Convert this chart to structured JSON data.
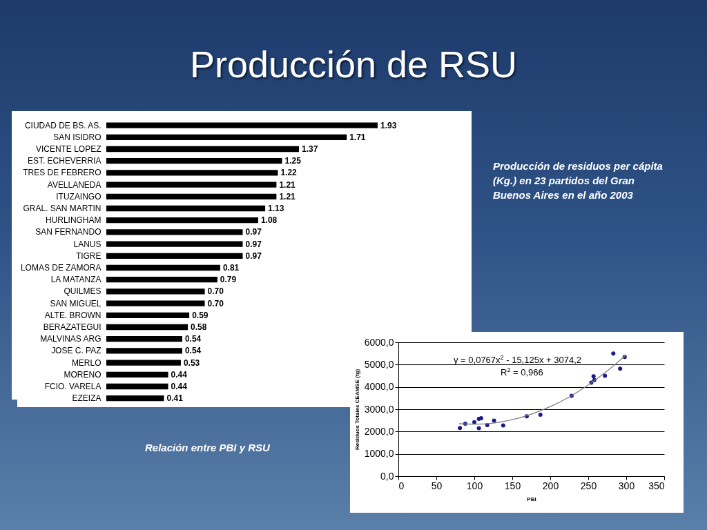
{
  "chart_data": [
    {
      "type": "bar",
      "orientation": "horizontal",
      "title": "Producción de RSU",
      "categories": [
        "CIUDAD DE BS. AS.",
        "SAN ISIDRO",
        "VICENTE LOPEZ",
        "EST. ECHEVERRIA",
        "TRES DE FEBRERO",
        "AVELLANEDA",
        "ITUZAINGO",
        "GRAL. SAN MARTIN",
        "HURLINGHAM",
        "SAN FERNANDO",
        "LANUS",
        "TIGRE",
        "LOMAS DE ZAMORA",
        "LA MATANZA",
        "QUILMES",
        "SAN MIGUEL",
        "ALTE. BROWN",
        "BERAZATEGUI",
        "MALVINAS ARG",
        "JOSE C. PAZ",
        "MERLO",
        "MORENO",
        "FCIO. VARELA",
        "EZEIZA"
      ],
      "values": [
        1.93,
        1.71,
        1.37,
        1.25,
        1.22,
        1.21,
        1.21,
        1.13,
        1.08,
        0.97,
        0.97,
        0.97,
        0.81,
        0.79,
        0.7,
        0.7,
        0.59,
        0.58,
        0.54,
        0.54,
        0.53,
        0.44,
        0.44,
        0.41
      ],
      "value_labels": [
        "1.93",
        "1.71",
        "1.37",
        "1.25",
        "1.22",
        "1.21",
        "1.21",
        "1.13",
        "1.08",
        "0.97",
        "0.97",
        "0.97",
        "0.81",
        "0.79",
        "0.70",
        "0.70",
        "0.59",
        "0.58",
        "0.54",
        "0.54",
        "0.53",
        "0.44",
        "0.44",
        "0.41"
      ],
      "color": "#000000",
      "annotations": [
        "Producción de residuos per cápita (Kg.) en 23 partidos del Gran Buenos Aires en el año 2003"
      ]
    },
    {
      "type": "scatter",
      "xlabel": "PBI",
      "ylabel": "Residuos Totales CEAMSE (tg)",
      "xlim": [
        0,
        350
      ],
      "xticks": [
        0,
        50,
        100,
        150,
        200,
        250,
        300,
        350
      ],
      "ylim": [
        0,
        6000
      ],
      "yticks": [
        {
          "value": 0,
          "label": "0,0"
        },
        {
          "value": 1000,
          "label": "1000,0"
        },
        {
          "value": 2000,
          "label": "2000,0"
        },
        {
          "value": 3000,
          "label": "3000,0"
        },
        {
          "value": 4000,
          "label": "4000,0"
        },
        {
          "value": 5000,
          "label": "5000,0"
        },
        {
          "value": 6000,
          "label": "6000,0"
        }
      ],
      "grid": "y",
      "series": [
        {
          "type": "scatter",
          "marker": "circle",
          "color": "#1a1a8c",
          "x": [
            81,
            88,
            100,
            106,
            106,
            109,
            117,
            126,
            138,
            169,
            187,
            228,
            254,
            257,
            258,
            272,
            283,
            292,
            298
          ],
          "values": [
            2160,
            2350,
            2420,
            2150,
            2570,
            2600,
            2290,
            2490,
            2270,
            2680,
            2750,
            3600,
            4190,
            4480,
            4310,
            4500,
            5500,
            4820,
            5340
          ]
        },
        {
          "type": "line",
          "color": "#808080",
          "x": [
            80,
            100,
            125,
            150,
            175,
            200,
            225,
            250,
            275,
            300
          ],
          "values": [
            2350,
            2330,
            2380,
            2530,
            2780,
            3120,
            3550,
            4090,
            4720,
            5440
          ]
        }
      ],
      "annotations": [
        "y = 0,0767x$^{2}$ - 15,125x + 3074,2",
        "R$^{2}$ = 0,966",
        "Relación entre PBI y RSU"
      ]
    }
  ]
}
